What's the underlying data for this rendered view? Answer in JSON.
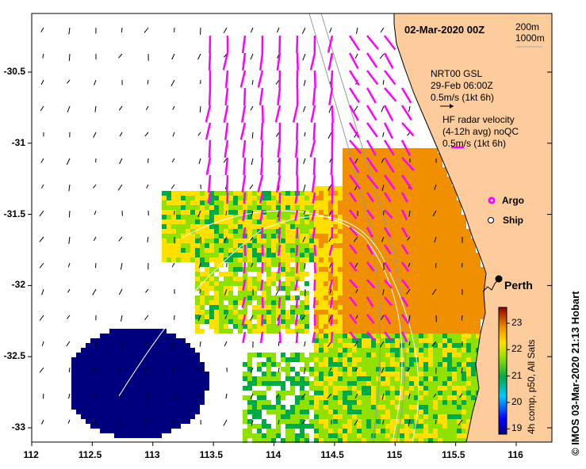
{
  "map": {
    "title": "02-Mar-2020 00Z",
    "contours": [
      "200m",
      "1000m"
    ],
    "gsl": {
      "line1": "NRT00 GSL",
      "line2": "29-Feb 06:00Z",
      "line3": "0.5m/s (1kt 6h)"
    },
    "hf": {
      "line1": "HF radar velocity",
      "line2": "(4-12h avg) noQC",
      "line3": "0.5m/s (1kt 6h)"
    },
    "legend": {
      "argo": "Argo",
      "ship": "Ship"
    },
    "city": "Perth",
    "x_ticks": [
      "112",
      "112.5",
      "113",
      "113.5",
      "114",
      "114.5",
      "115",
      "115.5",
      "116"
    ],
    "y_ticks": [
      "-30.5",
      "-31",
      "-31.5",
      "-32",
      "-32.5",
      "-33"
    ],
    "colorbar": {
      "title": "4h comp, p50, All Sats",
      "ticks": [
        "23",
        "22",
        "21",
        "20",
        "19"
      ],
      "range": [
        18.8,
        23.6
      ]
    },
    "credit": "© IMOS 03-Mar-2020 21:13 Hobart",
    "colors": {
      "land": "#fccc9c",
      "argo": "#ff00ff",
      "hf": "#ff00ff"
    }
  }
}
